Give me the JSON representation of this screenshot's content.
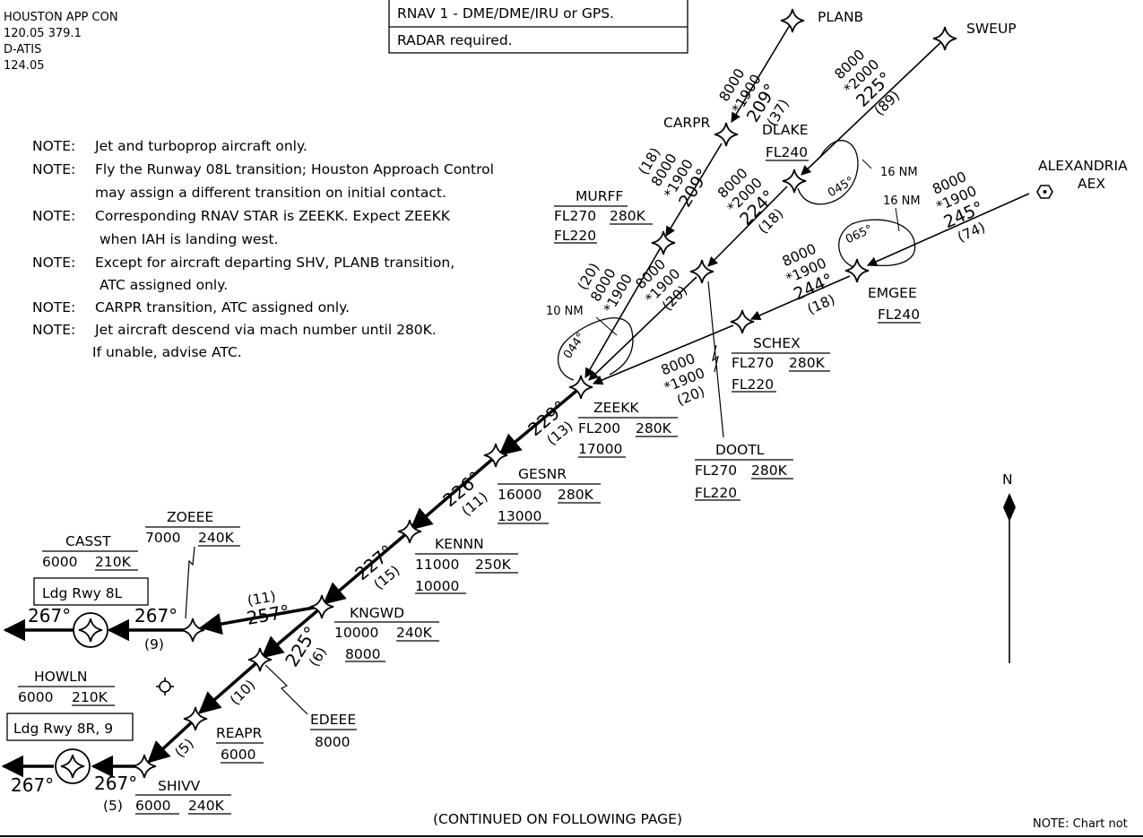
{
  "comm": {
    "facility": "HOUSTON APP CON",
    "freqs": "120.05  379.1",
    "atis_label": "D-ATIS",
    "atis_freq": "124.05"
  },
  "nav_box": {
    "line1": "RNAV 1 - DME/DME/IRU or GPS.",
    "line2": "RADAR required."
  },
  "notes": [
    {
      "prefix": "NOTE:",
      "lines": [
        "Jet and turboprop aircraft only."
      ]
    },
    {
      "prefix": "NOTE:",
      "lines": [
        "Fly the Runway 08L transition; Houston Approach Control",
        "may assign a different transition on initial contact."
      ]
    },
    {
      "prefix": "NOTE:",
      "lines": [
        "Corresponding RNAV STAR is ZEEKK. Expect ZEEKK",
        "when IAH is landing west."
      ]
    },
    {
      "prefix": "NOTE:",
      "lines": [
        "Except for aircraft departing SHV, PLANB transition,",
        "ATC assigned only."
      ]
    },
    {
      "prefix": "NOTE:",
      "lines": [
        "CARPR transition, ATC assigned only."
      ]
    },
    {
      "prefix": "NOTE:",
      "lines": [
        "Jet aircraft descend via mach number until 280K.",
        "If unable, advise ATC."
      ]
    }
  ],
  "fixes": {
    "planb": {
      "name": "PLANB"
    },
    "sweup": {
      "name": "SWEUP"
    },
    "carpr": {
      "name": "CARPR"
    },
    "dlake": {
      "name": "DLAKE",
      "alt": "FL240"
    },
    "aex": {
      "name": "ALEXANDRIA",
      "ident": "AEX"
    },
    "murff": {
      "name": "MURFF",
      "alt_top": "FL270",
      "speed": "280K",
      "alt_bottom": "FL220"
    },
    "emgee": {
      "name": "EMGEE",
      "alt": "FL240"
    },
    "schex": {
      "name": "SCHEX",
      "alt_top": "FL270",
      "speed": "280K",
      "alt_bottom": "FL220"
    },
    "zeekk": {
      "name": "ZEEKK",
      "alt_top": "FL200",
      "speed": "280K",
      "alt_bottom": "17000"
    },
    "dootl": {
      "name": "DOOTL",
      "alt_top": "FL270",
      "speed": "280K",
      "alt_bottom": "FL220"
    },
    "gesnr": {
      "name": "GESNR",
      "alt_top": "16000",
      "speed": "280K",
      "alt_bottom": "13000"
    },
    "kennn": {
      "name": "KENNN",
      "alt_top": "11000",
      "speed": "250K",
      "alt_bottom": "10000"
    },
    "kngwd": {
      "name": "KNGWD",
      "alt_top": "10000",
      "speed": "240K",
      "alt_bottom": "8000"
    },
    "zoeee": {
      "name": "ZOEEE",
      "alt_top": "7000",
      "speed": "240K"
    },
    "casst": {
      "name": "CASST",
      "alt_top": "6000",
      "speed": "210K",
      "runway": "Ldg Rwy 8L"
    },
    "edeee": {
      "name": "EDEEE",
      "alt": "8000"
    },
    "howln": {
      "name": "HOWLN",
      "alt_top": "6000",
      "speed": "210K",
      "runway": "Ldg Rwy 8R, 9"
    },
    "reapr": {
      "name": "REAPR",
      "alt": "6000"
    },
    "shivv": {
      "name": "SHIVV",
      "alt_top": "6000",
      "speed": "240K"
    }
  },
  "legs": {
    "planb": {
      "mea": "8000",
      "moca": "*1900",
      "course": "209°",
      "dist": "(37)"
    },
    "sweup": {
      "mea": "8000",
      "moca": "*2000",
      "course": "225°",
      "dist": "(89)"
    },
    "carpr": {
      "dist": "(18)",
      "mea": "8000",
      "moca": "*1900",
      "course": "209°"
    },
    "dlake": {
      "mea": "8000",
      "moca": "*2000",
      "course": "224°",
      "dist": "(18)"
    },
    "aex": {
      "mea": "8000",
      "moca": "*1900",
      "course": "245°",
      "dist": "(74)"
    },
    "murff": {
      "dist": "(20)",
      "mea": "8000",
      "moca": "*1900"
    },
    "dootl_leg": {
      "mea": "8000",
      "moca": "*1900",
      "dist": "(20)"
    },
    "emgee": {
      "mea": "8000",
      "moca": "*1900",
      "course": "244°",
      "dist": "(18)"
    },
    "schex": {
      "mea": "8000",
      "moca": "*1900",
      "dist": "(20)"
    },
    "zeekk": {
      "course": "229°",
      "dist": "(13)"
    },
    "gesnr": {
      "course": "226°",
      "dist": "(11)"
    },
    "kennn": {
      "course": "227°",
      "dist": "(15)"
    },
    "kngwd_zoeee": {
      "dist": "(11)",
      "course": "257°"
    },
    "zoeee_casst": {
      "course": "267°",
      "dist": "(9)"
    },
    "casst_out": {
      "course": "267°"
    },
    "kngwd_edeee": {
      "course": "225°",
      "dist": "(6)"
    },
    "edeee_reapr": {
      "dist": "(10)"
    },
    "reapr_shivv": {
      "dist": "(5)"
    },
    "shivv_howln": {
      "course": "267°",
      "dist": "(5)"
    },
    "howln_out": {
      "course": "267°"
    }
  },
  "holds": {
    "dlake": {
      "course": "045°",
      "leg": "16 NM"
    },
    "emgee": {
      "course": "065°",
      "leg": "16 NM"
    },
    "zeekk": {
      "course": "044°",
      "leg": "10 NM"
    }
  },
  "north": "N",
  "continued": "(CONTINUED ON FOLLOWING PAGE)",
  "footnote": "NOTE:  Chart not"
}
